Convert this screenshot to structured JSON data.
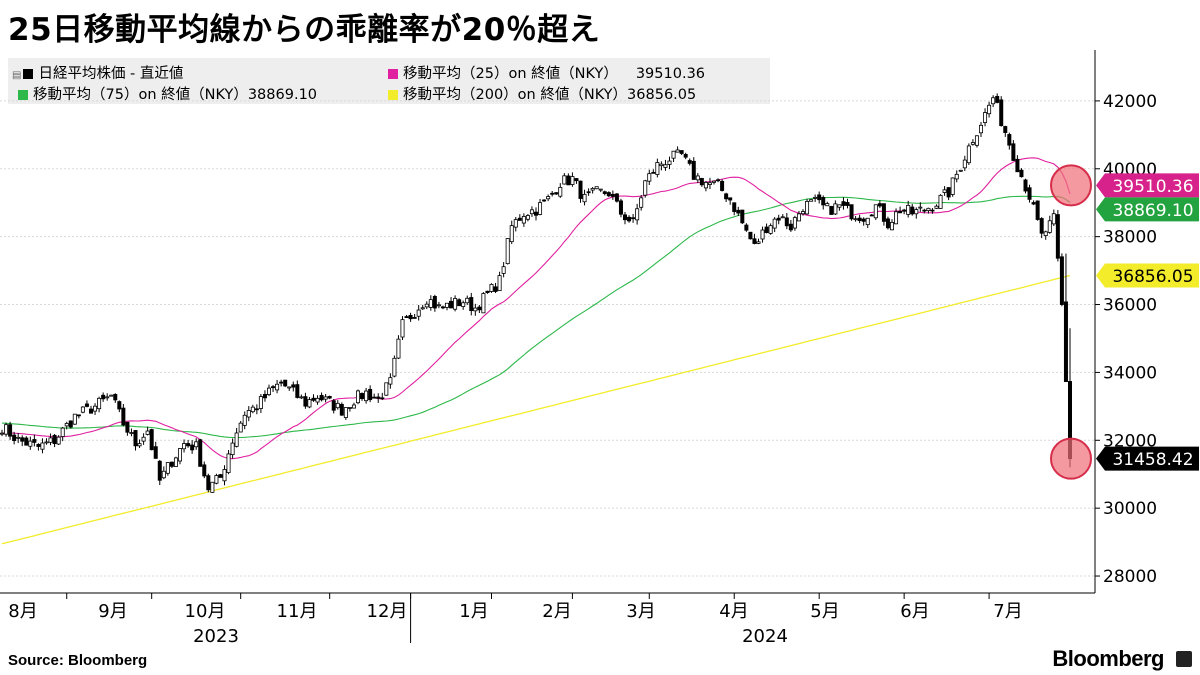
{
  "title": "25日移動平均線からの乖離率が20％超え",
  "source": "Source:  Bloomberg",
  "brand": "Bloomberg",
  "chart_data": {
    "type": "candlestick",
    "title": "25日移動平均線からの乖離率が20％超え",
    "ylim": [
      27500,
      43500
    ],
    "yticks": [
      28000,
      30000,
      32000,
      34000,
      36000,
      38000,
      40000,
      42000
    ],
    "grid": "horizontal",
    "legend_placement": "top-left",
    "x_months": [
      "8月",
      "9月",
      "10月",
      "11月",
      "12月",
      "1月",
      "2月",
      "3月",
      "4月",
      "5月",
      "6月",
      "7月"
    ],
    "x_years": [
      "2023",
      "2024"
    ],
    "series": [
      {
        "name": "日経平均株価  - 直近値",
        "color": "#000000",
        "last": "31458.42",
        "label_color": "#000000",
        "anchors": [
          [
            0,
            32400
          ],
          [
            4,
            32000
          ],
          [
            9,
            31800
          ],
          [
            13,
            32000
          ],
          [
            18,
            32700
          ],
          [
            23,
            33000
          ],
          [
            27,
            33300
          ],
          [
            30,
            32500
          ],
          [
            33,
            31900
          ],
          [
            36,
            32300
          ],
          [
            39,
            30800
          ],
          [
            42,
            31400
          ],
          [
            45,
            31900
          ],
          [
            48,
            31800
          ],
          [
            51,
            30600
          ],
          [
            54,
            30900
          ],
          [
            57,
            32000
          ],
          [
            60,
            32800
          ],
          [
            63,
            33000
          ],
          [
            66,
            33400
          ],
          [
            69,
            33700
          ],
          [
            72,
            33400
          ],
          [
            75,
            33100
          ],
          [
            78,
            33300
          ],
          [
            81,
            33100
          ],
          [
            84,
            32900
          ],
          [
            87,
            33200
          ],
          [
            90,
            33400
          ],
          [
            93,
            33200
          ],
          [
            96,
            33700
          ],
          [
            99,
            35400
          ],
          [
            102,
            35800
          ],
          [
            105,
            36200
          ],
          [
            108,
            35900
          ],
          [
            111,
            36000
          ],
          [
            114,
            36100
          ],
          [
            117,
            35900
          ],
          [
            120,
            36300
          ],
          [
            123,
            36700
          ],
          [
            126,
            38300
          ],
          [
            129,
            38700
          ],
          [
            132,
            38800
          ],
          [
            135,
            39100
          ],
          [
            138,
            39600
          ],
          [
            141,
            39700
          ],
          [
            144,
            39100
          ],
          [
            147,
            39300
          ],
          [
            150,
            39300
          ],
          [
            153,
            38700
          ],
          [
            156,
            38400
          ],
          [
            159,
            39600
          ],
          [
            162,
            40100
          ],
          [
            165,
            40300
          ],
          [
            168,
            40400
          ],
          [
            171,
            39800
          ],
          [
            174,
            39600
          ],
          [
            177,
            39500
          ],
          [
            180,
            39100
          ],
          [
            183,
            38400
          ],
          [
            186,
            37700
          ],
          [
            189,
            38300
          ],
          [
            192,
            38600
          ],
          [
            195,
            38300
          ],
          [
            198,
            38900
          ],
          [
            201,
            39000
          ],
          [
            204,
            38800
          ],
          [
            207,
            38900
          ],
          [
            210,
            38700
          ],
          [
            213,
            38600
          ],
          [
            216,
            38900
          ],
          [
            219,
            38400
          ],
          [
            222,
            38800
          ],
          [
            225,
            38700
          ],
          [
            228,
            38800
          ],
          [
            231,
            39000
          ],
          [
            234,
            39300
          ],
          [
            237,
            40100
          ],
          [
            240,
            40900
          ],
          [
            243,
            41600
          ],
          [
            245,
            42100
          ],
          [
            248,
            41100
          ],
          [
            251,
            40100
          ],
          [
            254,
            39200
          ],
          [
            257,
            38000
          ],
          [
            260,
            38500
          ],
          [
            262,
            36000
          ],
          [
            264,
            31458
          ]
        ]
      },
      {
        "name": "移動平均（25）on 終値（NKY）",
        "color": "#e020a0",
        "last": "39510.36",
        "label_color": "#d6228a"
      },
      {
        "name": "移動平均（75）on 終値（NKY）",
        "color": "#2db84a",
        "last": "38869.10",
        "label_color": "#23a33f"
      },
      {
        "name": "移動平均（200）on 終値（NKY）",
        "color": "#f2ec2a",
        "last": "36856.05",
        "label_color": "#f2ec2a"
      }
    ],
    "highlights": [
      39510.36,
      31458.42
    ]
  }
}
